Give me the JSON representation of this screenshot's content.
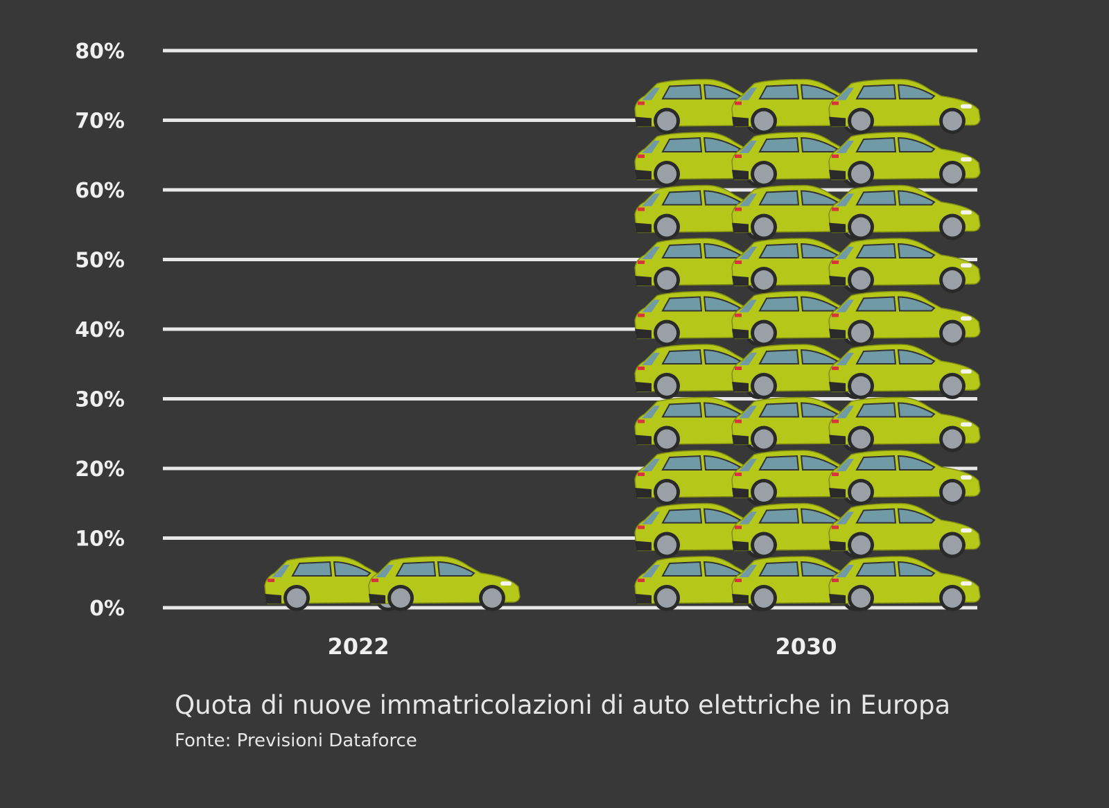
{
  "chart_data": {
    "type": "bar",
    "style": "pictogram",
    "title": "Quota di nuove immatricolazioni di auto elettriche in Europa",
    "source": "Fonte: Previsioni Dataforce",
    "categories": [
      "2022",
      "2030"
    ],
    "values": [
      8,
      77
    ],
    "unit": "%",
    "icon": "car-icon",
    "icon_rows": [
      1,
      10
    ],
    "icon_cols": [
      2,
      3
    ],
    "ylim": [
      0,
      80
    ],
    "yticks": [
      "0%",
      "10%",
      "20%",
      "30%",
      "40%",
      "50%",
      "60%",
      "70%",
      "80%"
    ],
    "grid": true,
    "colors": {
      "background": "#383838",
      "car": "#b5c81a",
      "grid": "#e8e8e8"
    }
  }
}
